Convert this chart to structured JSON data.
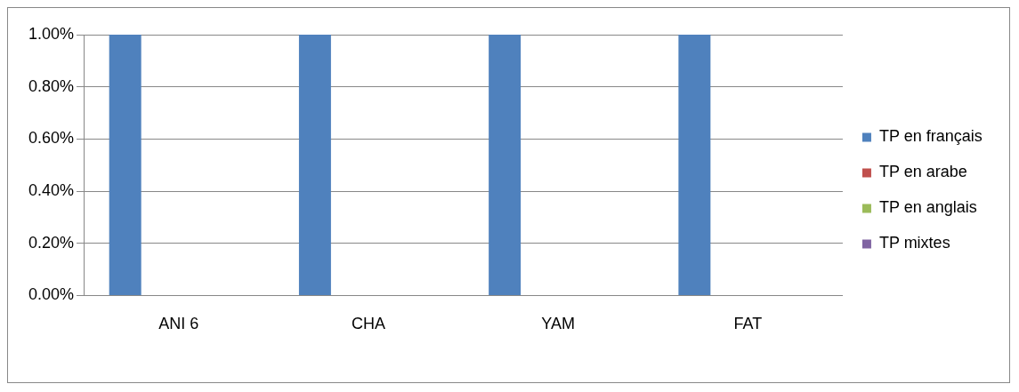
{
  "chart_data": {
    "type": "bar",
    "categories": [
      "ANI 6",
      "CHA",
      "YAM",
      "FAT"
    ],
    "series": [
      {
        "name": "TP en français",
        "color": "#4f81bd",
        "values": [
          1.0,
          1.0,
          1.0,
          1.0
        ]
      },
      {
        "name": "TP en arabe",
        "color": "#c0504d",
        "values": [
          0,
          0,
          0,
          0
        ]
      },
      {
        "name": "TP en anglais",
        "color": "#9bbb59",
        "values": [
          0,
          0,
          0,
          0
        ]
      },
      {
        "name": "TP mixtes",
        "color": "#8064a2",
        "values": [
          0,
          0,
          0,
          0
        ]
      }
    ],
    "ylim": [
      0,
      1.0
    ],
    "yticks": [
      {
        "value": 0,
        "label": "0.00%"
      },
      {
        "value": 0.2,
        "label": "0.20%"
      },
      {
        "value": 0.4,
        "label": "0.40%"
      },
      {
        "value": 0.6,
        "label": "0.60%"
      },
      {
        "value": 0.8,
        "label": "0.80%"
      },
      {
        "value": 1.0,
        "label": "1.00%"
      }
    ],
    "grid": "y",
    "legend": "right"
  }
}
